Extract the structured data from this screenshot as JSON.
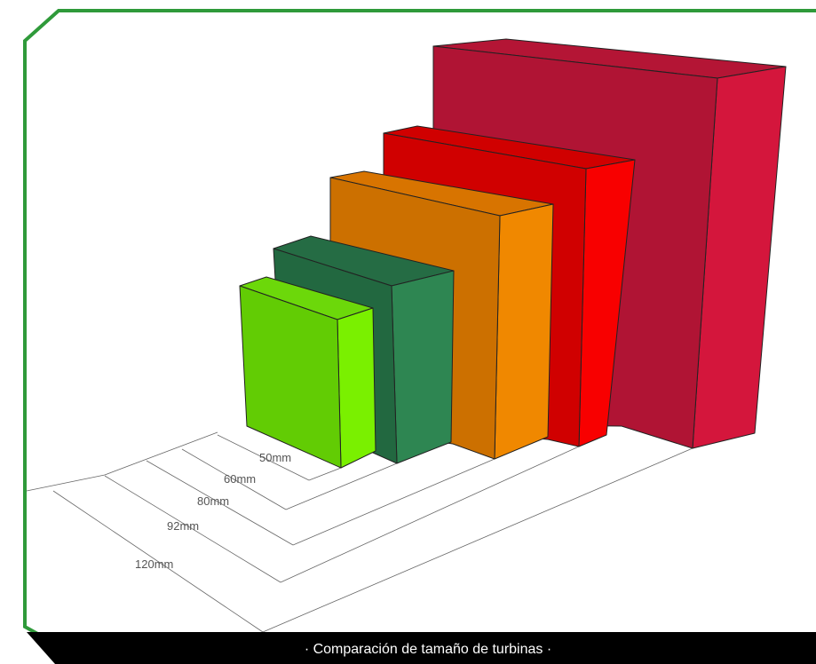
{
  "caption": "· Comparación de tamaño de turbinas ·",
  "dimensions": [
    "50mm",
    "60mm",
    "80mm",
    "92mm",
    "120mm"
  ]
}
